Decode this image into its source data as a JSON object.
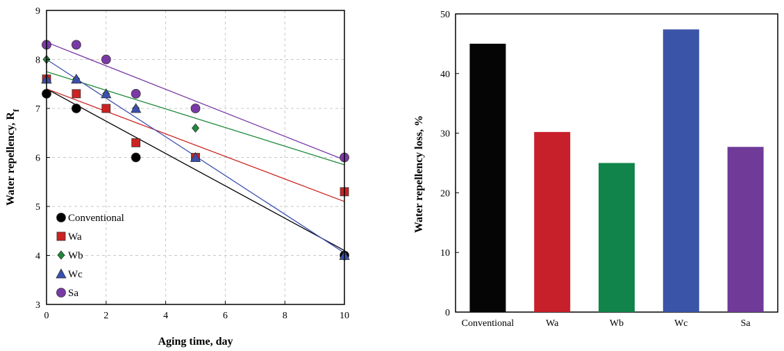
{
  "chart_data": [
    {
      "type": "scatter",
      "title": "",
      "xlabel": "Aging time, day",
      "ylabel_main": "Water repellency, R",
      "ylabel_sub": "f",
      "xlim": [
        0,
        10
      ],
      "ylim": [
        3,
        9
      ],
      "xticks": [
        0,
        2,
        4,
        6,
        8,
        10
      ],
      "yticks": [
        3,
        4,
        5,
        6,
        7,
        8,
        9
      ],
      "grid": "dashed",
      "legend_position": "bottom-left",
      "series": [
        {
          "name": "Conventional",
          "marker": "circle",
          "color": "#000000",
          "x": [
            0,
            1,
            3,
            10
          ],
          "y": [
            7.3,
            7.0,
            6.0,
            4.0
          ],
          "trend": [
            7.4,
            4.1
          ]
        },
        {
          "name": "Wa",
          "marker": "square",
          "color": "#cc2222",
          "x": [
            0,
            1,
            2,
            3,
            5,
            10
          ],
          "y": [
            7.6,
            7.3,
            7.0,
            6.3,
            6.0,
            5.3
          ],
          "trend": [
            7.4,
            5.1
          ]
        },
        {
          "name": "Wb",
          "marker": "diamond",
          "color": "#1e8a3a",
          "x": [
            0,
            1,
            2,
            3,
            5
          ],
          "y": [
            8.0,
            7.6,
            7.3,
            7.0,
            6.6
          ],
          "trend": [
            7.75,
            5.85
          ]
        },
        {
          "name": "Wc",
          "marker": "triangle",
          "color": "#3a50b0",
          "x": [
            0,
            1,
            2,
            3,
            5,
            10
          ],
          "y": [
            7.6,
            7.6,
            7.3,
            7.0,
            6.0,
            4.0
          ],
          "trend": [
            8.0,
            4.05
          ]
        },
        {
          "name": "Sa",
          "marker": "circle",
          "color": "#7a3aa6",
          "x": [
            0,
            1,
            2,
            3,
            5,
            10
          ],
          "y": [
            8.3,
            8.3,
            8.0,
            7.3,
            7.0,
            6.0
          ],
          "trend": [
            8.35,
            5.95
          ]
        }
      ]
    },
    {
      "type": "bar",
      "title": "",
      "xlabel": "",
      "ylabel": "Water repellency loss, %",
      "ylim": [
        0,
        50
      ],
      "yticks": [
        0,
        10,
        20,
        30,
        40,
        50
      ],
      "categories": [
        "Conventional",
        "Wa",
        "Wb",
        "Wc",
        "Sa"
      ],
      "values": [
        45.0,
        30.2,
        25.0,
        47.4,
        27.7
      ],
      "colors": [
        "#050505",
        "#c8202a",
        "#10844a",
        "#3a55a8",
        "#6f3a98"
      ]
    }
  ]
}
